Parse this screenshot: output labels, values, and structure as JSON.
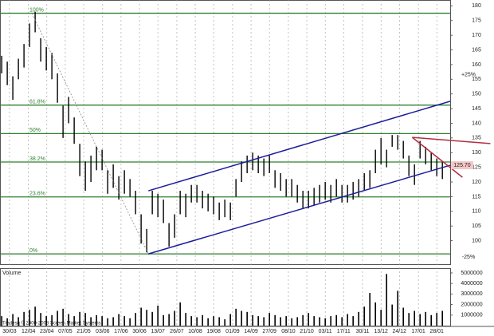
{
  "chart_data": {
    "type": "ohlc",
    "high": [
      163,
      161,
      156,
      162,
      167,
      174,
      178,
      169,
      166,
      164,
      157,
      146,
      149,
      142,
      133,
      127,
      129,
      132,
      131,
      124,
      126,
      122,
      124,
      121,
      117,
      109,
      104,
      117,
      116,
      114,
      106,
      109,
      117,
      116,
      119,
      119,
      117,
      116,
      115,
      113,
      114,
      113,
      121,
      127,
      129,
      130,
      129,
      128,
      129,
      124,
      123,
      121,
      121,
      119,
      117,
      117,
      118,
      119,
      120,
      119,
      121,
      119,
      119,
      120,
      121,
      123,
      124,
      131,
      135,
      131,
      136,
      136,
      134,
      129,
      126,
      134,
      132,
      130,
      128,
      127
    ],
    "low": [
      157,
      153,
      148,
      155,
      159,
      166,
      171,
      161,
      158,
      155,
      147,
      135,
      140,
      133,
      122,
      117,
      120,
      124,
      124,
      116,
      118,
      114,
      116,
      115,
      109,
      99,
      96,
      109,
      108,
      106,
      98,
      101,
      109,
      108,
      113,
      113,
      111,
      110,
      109,
      107,
      108,
      107,
      115,
      120,
      123,
      124,
      123,
      122,
      123,
      118,
      117,
      115,
      115,
      113,
      111,
      111,
      112,
      113,
      114,
      113,
      115,
      113,
      113,
      114,
      115,
      117,
      118,
      123,
      126,
      125,
      132,
      131,
      128,
      122,
      119,
      128,
      126,
      124,
      122,
      121
    ],
    "volume": [
      900000,
      700000,
      1100000,
      800000,
      1300000,
      1500000,
      1800000,
      1200000,
      900000,
      1000000,
      1400000,
      1600000,
      1100000,
      900000,
      1300000,
      1200000,
      800000,
      1000000,
      900000,
      700000,
      800000,
      1100000,
      900000,
      700000,
      1200000,
      1700000,
      1500000,
      1300000,
      1900000,
      1000000,
      1100000,
      1400000,
      2200000,
      1200000,
      900000,
      800000,
      1000000,
      700000,
      900000,
      800000,
      600000,
      1100000,
      1600000,
      1400000,
      1300000,
      1000000,
      900000,
      800000,
      1200000,
      1000000,
      800000,
      900000,
      700000,
      800000,
      1000000,
      1200000,
      900000,
      800000,
      700000,
      900000,
      1000000,
      800000,
      1100000,
      900000,
      1300000,
      1800000,
      3100000,
      2200000,
      1500000,
      4900000,
      2000000,
      3300000,
      1700000,
      1200000,
      1400000,
      1100000,
      1300000,
      1000000,
      1200000,
      1400000
    ],
    "color": "#000000",
    "xlim": [
      -0.3,
      80.4
    ],
    "xticks": [
      {
        "value": 1.4,
        "label": "30/03"
      },
      {
        "value": 4.8,
        "label": "12/04"
      },
      {
        "value": 8.1,
        "label": "23/04"
      },
      {
        "value": 11.4,
        "label": "07/05"
      },
      {
        "value": 14.7,
        "label": "21/05"
      },
      {
        "value": 18.1,
        "label": "03/06"
      },
      {
        "value": 21.4,
        "label": "17/06"
      },
      {
        "value": 24.7,
        "label": "30/06"
      },
      {
        "value": 28.0,
        "label": "13/07"
      },
      {
        "value": 31.4,
        "label": "26/07"
      },
      {
        "value": 34.7,
        "label": "10/08"
      },
      {
        "value": 38.0,
        "label": "19/08"
      },
      {
        "value": 41.4,
        "label": "01/09"
      },
      {
        "value": 44.7,
        "label": "14/09"
      },
      {
        "value": 48.0,
        "label": "27/09"
      },
      {
        "value": 51.4,
        "label": "08/10"
      },
      {
        "value": 54.7,
        "label": "21/10"
      },
      {
        "value": 58.0,
        "label": "03/11"
      },
      {
        "value": 61.3,
        "label": "17/11"
      },
      {
        "value": 64.7,
        "label": "30/11"
      },
      {
        "value": 68.0,
        "label": "13/12"
      },
      {
        "value": 71.3,
        "label": "24/12"
      },
      {
        "value": 74.7,
        "label": "17/01"
      },
      {
        "value": 78.0,
        "label": "28/01"
      }
    ],
    "ylim": [
      92,
      182
    ],
    "yticks": [
      100,
      105,
      110,
      115,
      120,
      125,
      130,
      135,
      140,
      145,
      150,
      155,
      160,
      165,
      170,
      175,
      180
    ],
    "volume_label": "Volume",
    "volume_ylim": [
      0,
      5300000
    ],
    "volume_ticks": [
      1000000,
      2000000,
      3000000,
      4000000,
      5000000
    ],
    "fib_color": "#2f7f2f",
    "fib_levels": [
      {
        "value": 177.5,
        "label": "100%"
      },
      {
        "value": 146.2,
        "label": "61.8%"
      },
      {
        "value": 136.5,
        "label": "50%"
      },
      {
        "value": 126.8,
        "label": "38.2%"
      },
      {
        "value": 114.9,
        "label": "23.6%"
      },
      {
        "value": 95.5,
        "label": "0%"
      }
    ],
    "last_price": {
      "value": 125.7,
      "label": "125.70"
    },
    "annotations": [
      {
        "value": 156.6,
        "label": "+25%"
      },
      {
        "value": 94.4,
        "label": "-25%"
      }
    ],
    "trendlines": [
      {
        "color": "#1c1c9c",
        "dashed": false,
        "points": [
          [
            26.3,
            117
          ],
          [
            80.4,
            147.5
          ]
        ]
      },
      {
        "color": "#1c1c9c",
        "dashed": false,
        "points": [
          [
            26.3,
            95.5
          ],
          [
            80.4,
            125.7
          ]
        ]
      },
      {
        "color": "#b03040",
        "dashed": false,
        "points": [
          [
            73.6,
            135.2
          ],
          [
            87.6,
            133.1
          ]
        ]
      },
      {
        "color": "#b03040",
        "dashed": false,
        "points": [
          [
            73.6,
            135.2
          ],
          [
            82.6,
            121.6
          ]
        ]
      },
      {
        "color": "#888888",
        "dashed": true,
        "points": [
          [
            5.4,
            177.5
          ],
          [
            26.3,
            95.5
          ]
        ]
      }
    ],
    "copyright": "Tradesq © 2000-2008 Screen Market Systems"
  }
}
